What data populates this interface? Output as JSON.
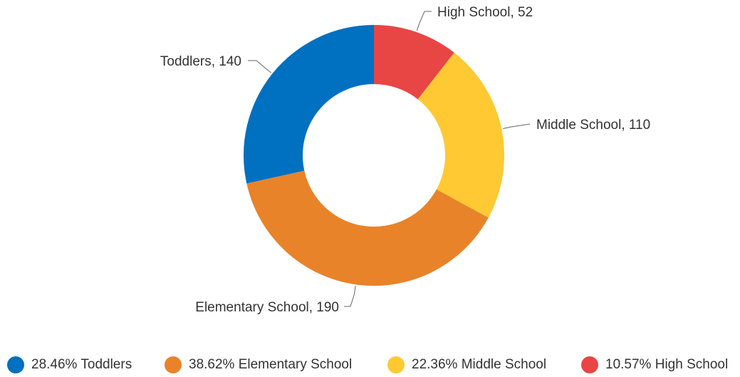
{
  "chart_data": {
    "type": "pie",
    "variant": "donut",
    "title": "",
    "slices": [
      {
        "label": "High School",
        "value": 52,
        "callout": "High School, 52",
        "percent_text": "10.57%",
        "color": "#E84545"
      },
      {
        "label": "Middle School",
        "value": 110,
        "callout": "Middle School, 110",
        "percent_text": "22.36%",
        "color": "#FFC933"
      },
      {
        "label": "Elementary School",
        "value": 190,
        "callout": "Elementary School, 190",
        "percent_text": "38.62%",
        "color": "#E8832A"
      },
      {
        "label": "Toddlers",
        "value": 140,
        "callout": "Toddlers, 140",
        "percent_text": "28.46%",
        "color": "#0070C0"
      }
    ],
    "legend": {
      "position": "bottom",
      "items": [
        {
          "percent": "28.46%",
          "label": "Toddlers",
          "color": "#0070C0"
        },
        {
          "percent": "38.62%",
          "label": "Elementary School",
          "color": "#E8832A"
        },
        {
          "percent": "22.36%",
          "label": "Middle School",
          "color": "#FFC933"
        },
        {
          "percent": "10.57%",
          "label": "High School",
          "color": "#E84545"
        }
      ]
    }
  }
}
